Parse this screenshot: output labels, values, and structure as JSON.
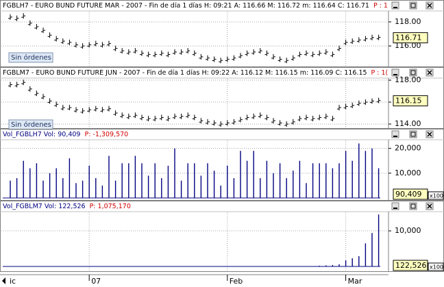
{
  "chart_data": [
    {
      "type": "tick",
      "header": [
        {
          "text": "FGBLH7 - EURO BUND FUTURE  MAR - 2007 - Fin de día 1 días  H: 09:21  A: 116.66  M: 116.72  m: 116.64  C: 116.71",
          "color": "#000000"
        },
        {
          "text": "P : 1",
          "color": "#d00000"
        }
      ],
      "button": "Sin órdenes",
      "last_label": "116.71",
      "color": "#000000",
      "values": [
        118.4,
        118.3,
        118.5,
        117.9,
        117.6,
        117.3,
        116.9,
        116.6,
        116.4,
        116.3,
        116.1,
        116.0,
        116.1,
        116.2,
        116.1,
        116.2,
        115.8,
        115.6,
        115.5,
        115.6,
        115.4,
        115.3,
        115.3,
        115.4,
        115.3,
        115.5,
        115.5,
        115.6,
        115.4,
        115.1,
        115.0,
        114.9,
        114.8,
        114.9,
        115.0,
        115.2,
        115.4,
        115.5,
        115.6,
        115.4,
        115.1,
        114.9,
        114.8,
        115.0,
        115.3,
        115.4,
        115.3,
        115.4,
        115.5,
        115.3,
        115.8,
        116.3,
        116.4,
        116.5,
        116.6,
        116.7,
        116.71
      ],
      "ylim": [
        114.3,
        118.85
      ],
      "yticks": [
        {
          "value": 116,
          "label": "116.00"
        },
        {
          "value": 118,
          "label": "118.00"
        }
      ],
      "grid": true
    },
    {
      "type": "tick",
      "header": [
        {
          "text": "FGBLM7 - EURO BUND FUTURE  JUN - 2007 - Fin de día 1 días  H: 09:22  A: 116.12  M: 116.15  m: 116.09  C: 116.15",
          "color": "#000000"
        },
        {
          "text": "P : 1(",
          "color": "#d00000"
        }
      ],
      "button": "Sin órdenes",
      "last_label": "116.15",
      "color": "#000000",
      "values": [
        117.6,
        117.6,
        117.8,
        117.2,
        116.8,
        116.5,
        116.1,
        115.8,
        115.5,
        115.5,
        115.3,
        115.2,
        115.3,
        115.4,
        115.3,
        115.4,
        115.0,
        114.8,
        114.7,
        114.8,
        114.6,
        114.5,
        114.5,
        114.6,
        114.5,
        114.7,
        114.7,
        114.8,
        114.6,
        114.3,
        114.2,
        114.1,
        114.0,
        114.1,
        114.2,
        114.4,
        114.6,
        114.7,
        114.8,
        114.6,
        114.3,
        114.1,
        114.0,
        114.2,
        114.5,
        114.6,
        114.5,
        114.6,
        114.7,
        114.5,
        115.5,
        115.6,
        115.7,
        115.9,
        116.0,
        116.1,
        116.15
      ],
      "ylim": [
        113.63,
        118.19
      ],
      "yticks": [
        {
          "value": 114,
          "label": "114.00"
        },
        {
          "value": 116,
          "label": "116.00"
        },
        {
          "value": 118,
          "label": "118.00"
        }
      ],
      "grid": true
    },
    {
      "type": "bar",
      "header": [
        {
          "text": "Vol_FGBLH7  Vol: 90,409",
          "color": "#000080"
        },
        {
          "text": "P: -1,309,570",
          "color": "#d00000"
        }
      ],
      "last_label": "90,409",
      "scale_note": "x100",
      "color": "#000080",
      "values": [
        7000,
        8000,
        15000,
        12000,
        14000,
        7000,
        10000,
        12000,
        8000,
        16000,
        6000,
        7000,
        13000,
        8000,
        5000,
        17000,
        7000,
        14000,
        14000,
        17000,
        14000,
        9000,
        14000,
        8000,
        13000,
        20000,
        7000,
        14000,
        14000,
        9000,
        14000,
        11000,
        5000,
        13000,
        8000,
        19000,
        15000,
        19000,
        8000,
        15000,
        10000,
        14000,
        8000,
        11000,
        15000,
        6000,
        14000,
        14000,
        14000,
        12000,
        14000,
        19000,
        15000,
        22000,
        19000,
        20000,
        12000
      ],
      "ylim": [
        0,
        23500
      ],
      "yticks": [
        {
          "value": 10000,
          "label": "10,000"
        },
        {
          "value": 20000,
          "label": "20,000"
        }
      ],
      "grid": true
    },
    {
      "type": "bar",
      "header": [
        {
          "text": "Vol_FGBLM7  Vol: 122,526",
          "color": "#000080"
        },
        {
          "text": "P: 1,075,170",
          "color": "#d00000"
        }
      ],
      "last_label": "122,526",
      "scale_note": "x100",
      "color": "#000080",
      "values": [
        0,
        0,
        0,
        0,
        0,
        0,
        0,
        0,
        0,
        0,
        0,
        0,
        0,
        0,
        0,
        0,
        0,
        0,
        0,
        0,
        0,
        0,
        0,
        0,
        0,
        0,
        0,
        0,
        0,
        0,
        0,
        0,
        0,
        0,
        0,
        0,
        0,
        0,
        0,
        0,
        0,
        0,
        0,
        0,
        0,
        0,
        100,
        200,
        300,
        400,
        600,
        1700,
        2300,
        2900,
        6500,
        9400,
        14600
      ],
      "ylim": [
        0,
        15400
      ],
      "yticks": [
        {
          "value": 10000,
          "label": "10,000"
        }
      ],
      "grid": true
    }
  ],
  "time_axis": {
    "labels": [
      "ic",
      "07",
      "Feb",
      "Mar"
    ]
  }
}
